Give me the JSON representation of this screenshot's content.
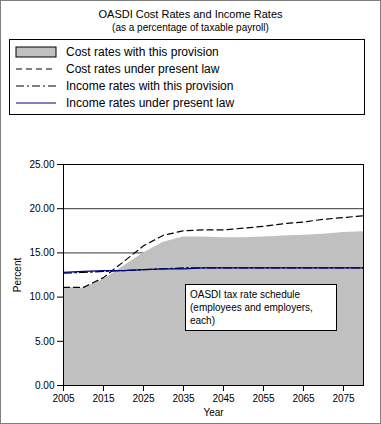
{
  "chart_data": {
    "type": "line",
    "title": "OASDI Cost Rates and Income Rates",
    "subtitle": "(as a percentage of taxable payroll)",
    "x_label": "Year",
    "y_label": "Percent",
    "x": [
      2005,
      2010,
      2015,
      2020,
      2025,
      2030,
      2035,
      2040,
      2045,
      2050,
      2055,
      2060,
      2065,
      2070,
      2075,
      2080
    ],
    "series": [
      {
        "name": "Cost rates with this provision",
        "type": "area",
        "color": "#c0c0c0",
        "values": [
          11.1,
          11.0,
          12.0,
          13.5,
          15.0,
          16.2,
          16.8,
          16.8,
          16.7,
          16.7,
          16.8,
          16.9,
          17.0,
          17.1,
          17.3,
          17.4
        ]
      },
      {
        "name": "Cost rates under present law",
        "type": "line",
        "line_style": "dashed",
        "color": "#000000",
        "values": [
          11.1,
          11.1,
          12.2,
          14.0,
          15.8,
          17.0,
          17.5,
          17.6,
          17.6,
          17.8,
          18.0,
          18.3,
          18.5,
          18.8,
          19.0,
          19.2
        ]
      },
      {
        "name": "Income rates with this provision",
        "type": "line",
        "line_style": "dashdot",
        "color": "#000000",
        "values": [
          12.7,
          12.8,
          12.9,
          13.0,
          13.1,
          13.2,
          13.3,
          13.3,
          13.3,
          13.3,
          13.3,
          13.3,
          13.3,
          13.3,
          13.3,
          13.3
        ]
      },
      {
        "name": "Income rates under present law",
        "type": "line",
        "line_style": "solid",
        "color": "#000080",
        "values": [
          12.8,
          12.9,
          13.0,
          13.0,
          13.1,
          13.2,
          13.2,
          13.3,
          13.3,
          13.3,
          13.3,
          13.3,
          13.3,
          13.3,
          13.3,
          13.3
        ]
      }
    ],
    "xlim": [
      2005,
      2080
    ],
    "xticks": [
      2005,
      2015,
      2025,
      2035,
      2045,
      2055,
      2065,
      2075
    ],
    "ylim": [
      0,
      25
    ],
    "yticks": [
      {
        "value": 0,
        "label": "0.00"
      },
      {
        "value": 5,
        "label": "5.00"
      },
      {
        "value": 10,
        "label": "10.00"
      },
      {
        "value": 15,
        "label": "15.00"
      },
      {
        "value": 20,
        "label": "20.00"
      },
      {
        "value": 25,
        "label": "25.00"
      }
    ],
    "grid": true,
    "legend": "top",
    "annotations": [
      "OASDI tax rate schedule (employees and employers, each)"
    ]
  }
}
